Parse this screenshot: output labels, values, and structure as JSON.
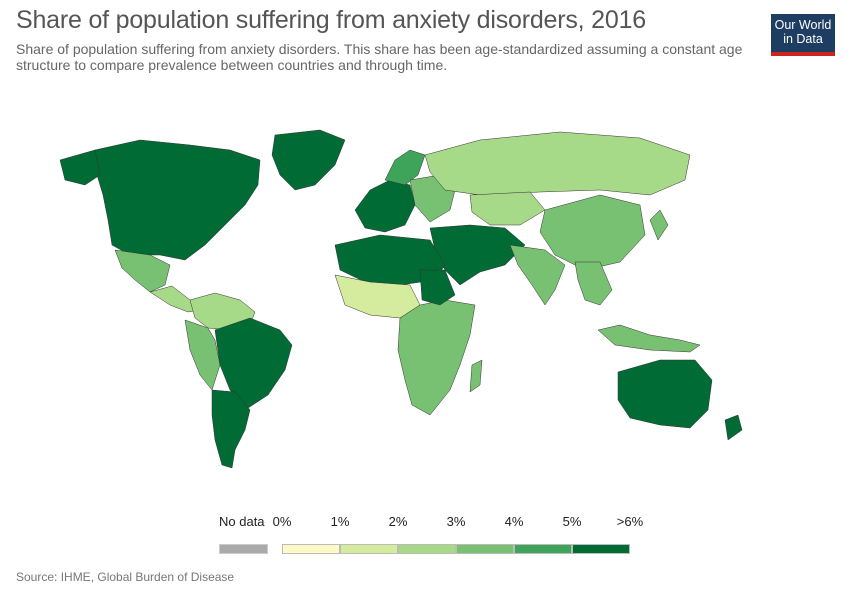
{
  "title": "Share of population suffering from anxiety disorders, 2016",
  "subtitle": "Share of population suffering from anxiety disorders. This share has been age-standardized assuming a constant age structure to compare prevalence between countries and through time.",
  "logo": {
    "line1": "Our World",
    "line2": "in Data",
    "bg": "#1d3d63",
    "accent": "#ce261e"
  },
  "legend": {
    "no_data_label": "No data",
    "no_data_color": "#aaaaaa",
    "ticks": [
      "0%",
      "1%",
      "2%",
      "3%",
      "4%",
      "5%",
      ">6%"
    ],
    "bins": [
      {
        "range": "0-1%",
        "color": "#fff9c8"
      },
      {
        "range": "1-2%",
        "color": "#d5ec9f"
      },
      {
        "range": "2-3%",
        "color": "#a7da88"
      },
      {
        "range": "3-4%",
        "color": "#78c172"
      },
      {
        "range": "4-5%",
        "color": "#3da45a"
      },
      {
        "range": ">5%",
        "color": "#006b35"
      }
    ]
  },
  "regions": [
    {
      "name": "Canada & United States",
      "value_bin": 5
    },
    {
      "name": "Greenland",
      "value_bin": 5
    },
    {
      "name": "Alaska",
      "value_bin": 5
    },
    {
      "name": "Mexico",
      "value_bin": 3
    },
    {
      "name": "Central America",
      "value_bin": 2
    },
    {
      "name": "Northern South America",
      "value_bin": 2
    },
    {
      "name": "Brazil",
      "value_bin": 5
    },
    {
      "name": "Andean countries",
      "value_bin": 3
    },
    {
      "name": "Southern Cone",
      "value_bin": 5
    },
    {
      "name": "Western Europe",
      "value_bin": 5
    },
    {
      "name": "Scandinavia",
      "value_bin": 4
    },
    {
      "name": "Eastern Europe",
      "value_bin": 3
    },
    {
      "name": "Russia",
      "value_bin": 2
    },
    {
      "name": "Central Asia",
      "value_bin": 2
    },
    {
      "name": "China",
      "value_bin": 3
    },
    {
      "name": "Middle East",
      "value_bin": 5
    },
    {
      "name": "North Africa",
      "value_bin": 5
    },
    {
      "name": "West Africa",
      "value_bin": 1
    },
    {
      "name": "Central & Southern Africa",
      "value_bin": 3
    },
    {
      "name": "Sudan",
      "value_bin": 5
    },
    {
      "name": "Madagascar",
      "value_bin": 3
    },
    {
      "name": "South Asia",
      "value_bin": 3
    },
    {
      "name": "Southeast Asia",
      "value_bin": 3
    },
    {
      "name": "Indonesia",
      "value_bin": 3
    },
    {
      "name": "Australia",
      "value_bin": 5
    },
    {
      "name": "New Zealand",
      "value_bin": 5
    },
    {
      "name": "Japan",
      "value_bin": 3
    }
  ],
  "source": "Source: IHME, Global Burden of Disease"
}
